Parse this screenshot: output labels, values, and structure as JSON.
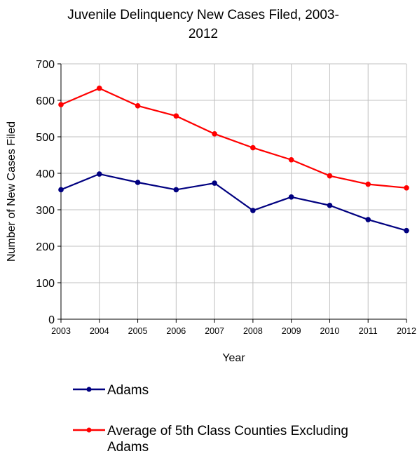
{
  "chart_data": {
    "type": "line",
    "title_lines": [
      "Juvenile Delinquency New Cases Filed, 2003-",
      "2012"
    ],
    "xlabel": "Year",
    "ylabel": "Number of New Cases Filed",
    "x": [
      "2003",
      "2004",
      "2005",
      "2006",
      "2007",
      "2008",
      "2009",
      "2010",
      "2011",
      "2012"
    ],
    "ylim": [
      0,
      700
    ],
    "yticks": [
      0,
      100,
      200,
      300,
      400,
      500,
      600,
      700
    ],
    "grid": true,
    "legend_position": "bottom",
    "series": [
      {
        "name": "Adams",
        "color": "#000080",
        "values": [
          355,
          398,
          375,
          355,
          373,
          298,
          335,
          312,
          273,
          243
        ]
      },
      {
        "name_lines": [
          "Average of 5th Class Counties Excluding",
          "Adams"
        ],
        "color": "#ff0000",
        "values": [
          588,
          633,
          585,
          557,
          508,
          470,
          437,
          393,
          370,
          360
        ]
      }
    ]
  }
}
